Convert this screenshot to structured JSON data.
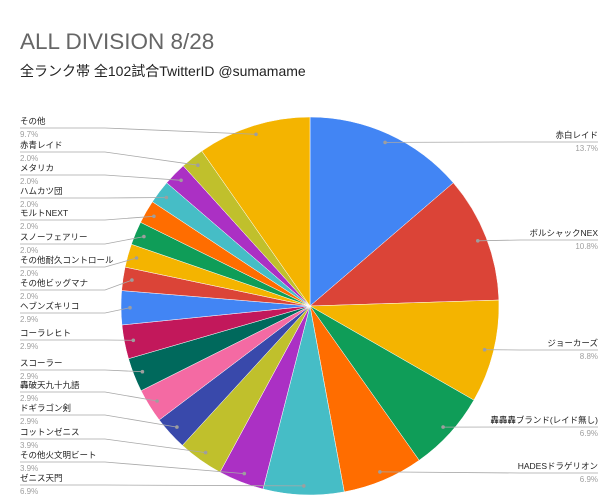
{
  "chart_data": {
    "type": "pie",
    "title": "ALL DIVISION 8/28",
    "subtitle": "全ランク帯 全102試合TwitterID @sumamame",
    "legend": "labeled",
    "slices": [
      {
        "label": "赤白レイド",
        "value": 13.7,
        "percent_label": "13.7%",
        "color": "#4285F4"
      },
      {
        "label": "ボルシャックNEX",
        "value": 10.8,
        "percent_label": "10.8%",
        "color": "#DB4437"
      },
      {
        "label": "ジョーカーズ",
        "value": 8.8,
        "percent_label": "8.8%",
        "color": "#F4B400"
      },
      {
        "label": "轟轟轟ブランド(レイド無し)",
        "value": 6.9,
        "percent_label": "6.9%",
        "color": "#0F9D58"
      },
      {
        "label": "HADESドラゲリオン",
        "value": 6.9,
        "percent_label": "6.9%",
        "color": "#FF6D00"
      },
      {
        "label": "ゼニス天門",
        "value": 6.9,
        "percent_label": "6.9%",
        "color": "#46BDC6"
      },
      {
        "label": "その他火文明ビート",
        "value": 3.9,
        "percent_label": "3.9%",
        "color": "#AB30C4"
      },
      {
        "label": "コットンゼニス",
        "value": 3.9,
        "percent_label": "3.9%",
        "color": "#C0C02C"
      },
      {
        "label": "ドギラゴン剣",
        "value": 2.9,
        "percent_label": "2.9%",
        "color": "#3949AB"
      },
      {
        "label": "轟破天九十九語",
        "value": 2.9,
        "percent_label": "2.9%",
        "color": "#F46AA3"
      },
      {
        "label": "スコーラー",
        "value": 2.9,
        "percent_label": "2.9%",
        "color": "#00695C"
      },
      {
        "label": "コーラレヒト",
        "value": 2.9,
        "percent_label": "2.9%",
        "color": "#C2185B"
      },
      {
        "label": "ヘブンズキリコ",
        "value": 2.9,
        "percent_label": "2.9%",
        "color": "#4285F4"
      },
      {
        "label": "その他ビッグマナ",
        "value": 2.0,
        "percent_label": "2.0%",
        "color": "#DB4437"
      },
      {
        "label": "その他耐久コントロール",
        "value": 2.0,
        "percent_label": "2.0%",
        "color": "#F4B400"
      },
      {
        "label": "スノーフェアリー",
        "value": 2.0,
        "percent_label": "2.0%",
        "color": "#0F9D58"
      },
      {
        "label": "モルトNEXT",
        "value": 2.0,
        "percent_label": "2.0%",
        "color": "#FF6D00"
      },
      {
        "label": "ハムカツ団",
        "value": 2.0,
        "percent_label": "2.0%",
        "color": "#46BDC6"
      },
      {
        "label": "メタリカ",
        "value": 2.0,
        "percent_label": "2.0%",
        "color": "#AB30C4"
      },
      {
        "label": "赤青レイド",
        "value": 2.0,
        "percent_label": "2.0%",
        "color": "#C0C02C"
      },
      {
        "label": "その他",
        "value": 9.7,
        "percent_label": "9.7%",
        "color": "#F4B400"
      }
    ]
  }
}
